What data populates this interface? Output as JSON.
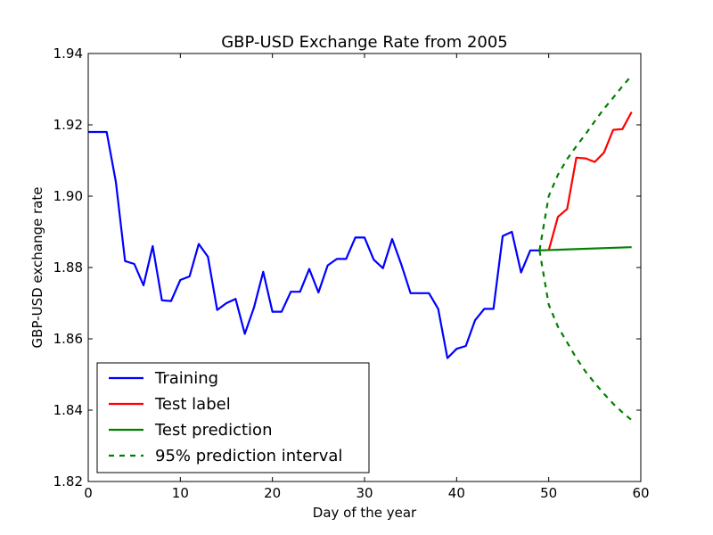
{
  "chart_data": {
    "type": "line",
    "title": "GBP-USD Exchange Rate from 2005",
    "xlabel": "Day of the year",
    "ylabel": "GBP-USD exchange rate",
    "xlim": [
      0,
      60
    ],
    "ylim": [
      1.82,
      1.94
    ],
    "x_ticks": [
      "0",
      "10",
      "20",
      "30",
      "40",
      "50",
      "60"
    ],
    "y_ticks": [
      "1.82",
      "1.84",
      "1.86",
      "1.88",
      "1.90",
      "1.92",
      "1.94"
    ],
    "grid": false,
    "legend_position": "lower-left",
    "series": [
      {
        "name": "Training",
        "color": "#0000ff",
        "style": "solid",
        "x": [
          0,
          1,
          2,
          3,
          4,
          5,
          6,
          7,
          8,
          9,
          10,
          11,
          12,
          13,
          14,
          15,
          16,
          17,
          18,
          19,
          20,
          21,
          22,
          23,
          24,
          25,
          26,
          27,
          28,
          29,
          30,
          31,
          32,
          33,
          34,
          35,
          36,
          37,
          38,
          39,
          40,
          41,
          42,
          43,
          44,
          45,
          46,
          47,
          48,
          49
        ],
        "y": [
          1.918,
          1.918,
          1.918,
          1.904,
          1.8818,
          1.881,
          1.875,
          1.886,
          1.8708,
          1.8706,
          1.8765,
          1.8775,
          1.8866,
          1.883,
          1.8681,
          1.87,
          1.8712,
          1.8614,
          1.8688,
          1.8788,
          1.8676,
          1.8676,
          1.8732,
          1.8732,
          1.8796,
          1.873,
          1.8806,
          1.8824,
          1.8824,
          1.8884,
          1.8884,
          1.8822,
          1.8798,
          1.888,
          1.8808,
          1.8728,
          1.8728,
          1.8728,
          1.8684,
          1.8546,
          1.8572,
          1.858,
          1.8652,
          1.8684,
          1.8684,
          1.8888,
          1.89,
          1.8786,
          1.8848,
          1.8848
        ]
      },
      {
        "name": "Test label",
        "color": "#ff0000",
        "style": "solid",
        "x": [
          50,
          51,
          52,
          53,
          54,
          55,
          56,
          57,
          58,
          59
        ],
        "y": [
          1.8848,
          1.8942,
          1.8964,
          1.9108,
          1.9106,
          1.9096,
          1.9122,
          1.9186,
          1.9188,
          1.9236
        ]
      },
      {
        "name": "Test prediction",
        "color": "#008000",
        "style": "solid",
        "x": [
          49,
          59
        ],
        "y": [
          1.8848,
          1.8857
        ]
      },
      {
        "name": "95% prediction interval",
        "color": "#008000",
        "style": "dashed",
        "upper": {
          "x": [
            49,
            50,
            51,
            52,
            53,
            54,
            55,
            56,
            57,
            58,
            59
          ],
          "y": [
            1.8848,
            1.9,
            1.906,
            1.9104,
            1.914,
            1.9174,
            1.921,
            1.9245,
            1.9276,
            1.9308,
            1.9338
          ]
        },
        "lower": {
          "x": [
            49,
            50,
            51,
            52,
            53,
            54,
            55,
            56,
            57,
            58,
            59
          ],
          "y": [
            1.8848,
            1.8696,
            1.8634,
            1.859,
            1.8546,
            1.8508,
            1.8476,
            1.8446,
            1.8418,
            1.8394,
            1.8372
          ]
        }
      }
    ]
  }
}
